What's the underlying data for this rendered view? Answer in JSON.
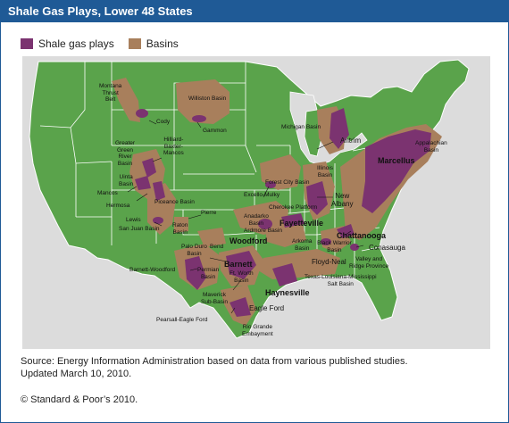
{
  "title": "Shale Gas Plays, Lower 48 States",
  "legend": [
    {
      "label": "Shale gas plays",
      "color": "#7b3370"
    },
    {
      "label": "Basins",
      "color": "#a87f5c"
    }
  ],
  "colors": {
    "land": "#5aa34b",
    "water": "#dcdcdc",
    "border": "#ffffff",
    "title_bar": "#1f5a96"
  },
  "labels": {
    "montana_thrust_belt": "Montana\nThrust\nBelt",
    "williston_basin": "Williston Basin",
    "cody": "Cody",
    "gammon": "Gammon",
    "michigan_basin": "Michigan Basin",
    "antrim": "Antrim",
    "appalachian_basin": "Appalachian\nBasin",
    "marcellus": "Marcellus",
    "hilliard": "Hilliard-\nBaxter-\nMancos",
    "greater_green_river": "Greater\nGreen\nRiver\nBasin",
    "uinta_basin": "Uinta\nBasin",
    "mancos": "Mancos",
    "hermosa": "Hermosa",
    "piceance_basin": "Piceance Basin",
    "lewis": "Lewis",
    "san_juan_basin": "San Juan Basin",
    "raton_basin": "Raton\nBasin",
    "pierre": "Pierre",
    "forest_city_basin": "Forest City Basin",
    "excello_mulky": "Excello-Mulky",
    "cherokee_platform": "Cherokee Platform",
    "anadarko_basin": "Anadarko\nBasin",
    "illinois_basin": "Illinois\nBasin",
    "new_albany": "New\nAlbany",
    "fayetteville": "Fayetteville",
    "woodford": "Woodford",
    "ardmore_basin": "Ardmore Basin",
    "arkoma_basin": "Arkoma\nBasin",
    "chattanooga": "Chattanooga",
    "conasauga": "Conasauga",
    "black_warrior_basin": "Black Warrior\nBasin",
    "valley_ridge": "Valley and\nRidge Province",
    "floyd_neal": "Floyd-Neal",
    "palo_duro_basin": "Palo Duro\nBasin",
    "bend": "Bend",
    "barnett": "Barnett",
    "barnett_woodford": "Barnett-Woodford",
    "permian_basin": "Permian\nBasin",
    "ft_worth_basin": "Ft. Worth\nBasin",
    "tx_la_ms_salt_basin": "Texas-Louisiana-Mississippi\nSalt Basin",
    "haynesville": "Haynesville",
    "maverick_sub_basin": "Maverick\nSub-Basin",
    "eagle_ford": "Eagle Ford",
    "pearsall_eagle_ford": "Pearsall-Eagle Ford",
    "rio_grande_embayment": "Rio Grande\nEmbayment"
  },
  "source": "Source: Energy Information Administration based on data from various published studies.",
  "updated": "Updated March 10, 2010.",
  "copyright": "© Standard & Poor’s 2010."
}
